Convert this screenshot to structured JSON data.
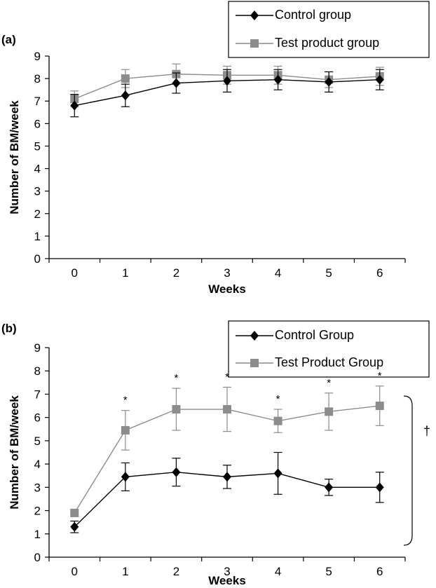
{
  "colors": {
    "control": "#000000",
    "test": "#8c8c8c"
  },
  "chart_data": [
    {
      "panel": "(a)",
      "type": "line",
      "x": [
        0,
        1,
        2,
        3,
        4,
        5,
        6
      ],
      "xlabel": "Weeks",
      "ylabel": "Number of BM/week",
      "ylim": [
        0,
        9
      ],
      "yticks": [
        0,
        1,
        2,
        3,
        4,
        5,
        6,
        7,
        8,
        9
      ],
      "grid": false,
      "legend_position": "top-right",
      "series": [
        {
          "name": "Control group",
          "marker": "diamond",
          "color": "#000000",
          "values": [
            6.8,
            7.25,
            7.8,
            7.9,
            7.95,
            7.85,
            7.95
          ],
          "errors": [
            0.5,
            0.5,
            0.45,
            0.5,
            0.45,
            0.45,
            0.45
          ]
        },
        {
          "name": "Test product group",
          "marker": "square",
          "color": "#8c8c8c",
          "values": [
            7.1,
            8.0,
            8.2,
            8.15,
            8.15,
            7.95,
            8.1
          ],
          "errors": [
            0.35,
            0.4,
            0.45,
            0.4,
            0.4,
            0.35,
            0.4
          ]
        }
      ],
      "annotations": []
    },
    {
      "panel": "(b)",
      "type": "line",
      "x": [
        0,
        1,
        2,
        3,
        4,
        5,
        6
      ],
      "xlabel": "Weeks",
      "ylabel": "Number of BM/week",
      "ylim": [
        0,
        9
      ],
      "yticks": [
        0,
        1,
        2,
        3,
        4,
        5,
        6,
        7,
        8,
        9
      ],
      "grid": false,
      "legend_position": "top-right",
      "series": [
        {
          "name": "Control Group",
          "marker": "diamond",
          "color": "#000000",
          "values": [
            1.3,
            3.45,
            3.65,
            3.45,
            3.6,
            3.0,
            3.0
          ],
          "errors": [
            0.25,
            0.6,
            0.6,
            0.5,
            0.9,
            0.35,
            0.65
          ]
        },
        {
          "name": "Test Product Group",
          "marker": "square",
          "color": "#8c8c8c",
          "values": [
            1.9,
            5.45,
            6.35,
            6.35,
            5.85,
            6.25,
            6.5
          ],
          "errors": [
            0,
            0.85,
            0.9,
            0.95,
            0.5,
            0.8,
            0.85
          ]
        }
      ],
      "annotations": [
        {
          "text": "*",
          "x": 1
        },
        {
          "text": "*",
          "x": 2
        },
        {
          "text": "*",
          "x": 3
        },
        {
          "text": "*",
          "x": 4
        },
        {
          "text": "*",
          "x": 5
        },
        {
          "text": "*",
          "x": 6
        }
      ],
      "bracket_label": "†"
    }
  ]
}
